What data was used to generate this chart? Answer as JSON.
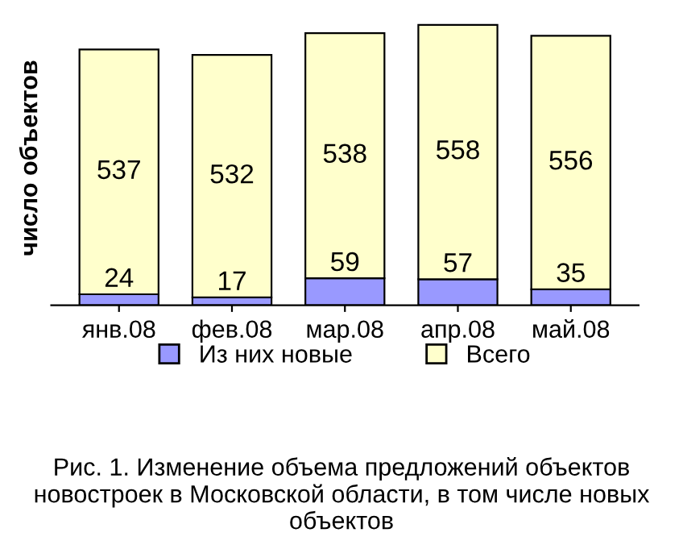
{
  "chart_data": {
    "type": "bar",
    "stacked": true,
    "ylabel": "число объектов",
    "categories": [
      "янв.08",
      "фев.08",
      "мар.08",
      "апр.08",
      "май.08"
    ],
    "series": [
      {
        "name": "Из них новые",
        "color": "#9999ff",
        "values": [
          24,
          17,
          59,
          57,
          35
        ]
      },
      {
        "name": "Всего",
        "color": "#ffffcc",
        "values": [
          537,
          532,
          538,
          558,
          556
        ]
      }
    ],
    "data_labels": true,
    "legend": "bottom",
    "grid": false,
    "annotations": [
      "Рис. 1. Изменение объема предложений объектов новостроек в Московской области, в том числе новых объектов"
    ]
  }
}
